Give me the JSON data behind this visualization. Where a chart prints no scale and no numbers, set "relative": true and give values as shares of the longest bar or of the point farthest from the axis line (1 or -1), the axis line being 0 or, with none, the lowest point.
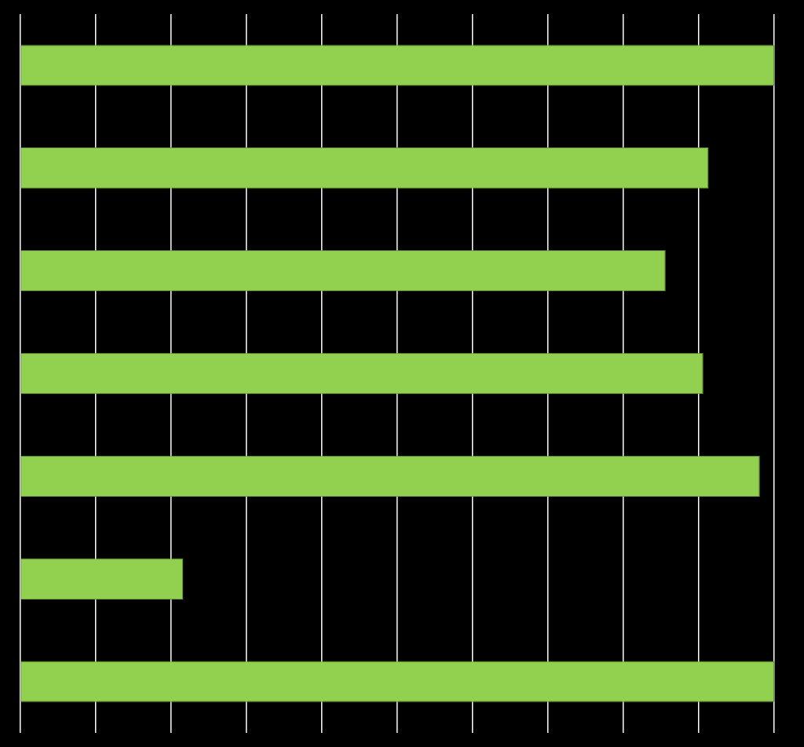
{
  "chart_data": {
    "type": "bar",
    "orientation": "horizontal",
    "relative": true,
    "grid": "x",
    "categories": [
      null,
      null,
      null,
      null,
      null,
      null,
      null
    ],
    "values": [
      1,
      0.913,
      0.856,
      0.906,
      0.981,
      0.216,
      1
    ],
    "color": "#92d050"
  }
}
